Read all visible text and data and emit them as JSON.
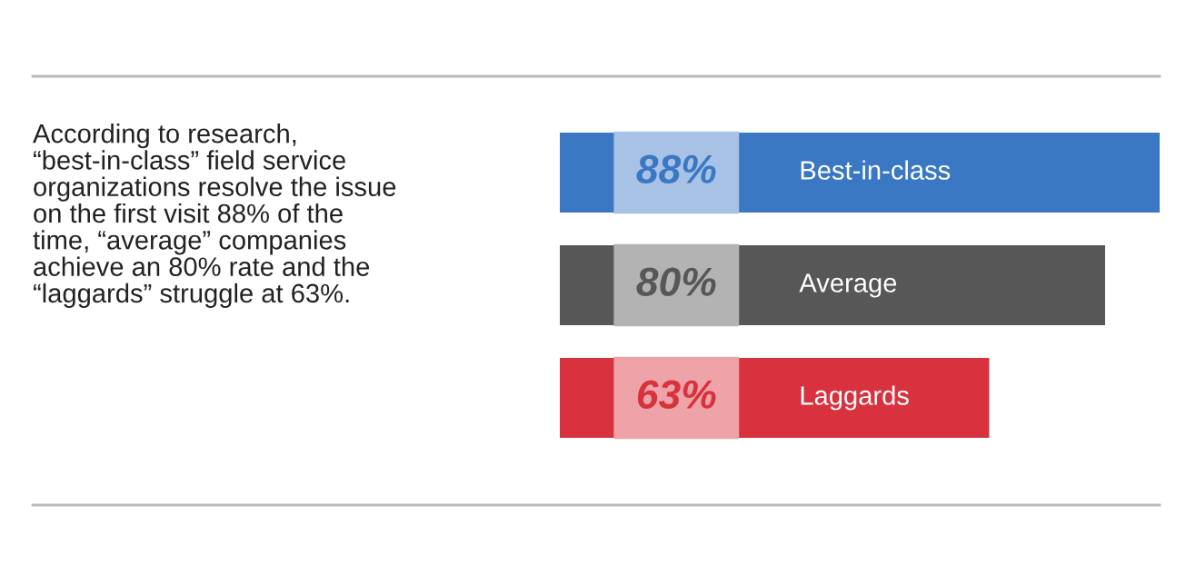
{
  "chart_data": {
    "type": "bar",
    "orientation": "horizontal",
    "categories": [
      "Best-in-class",
      "Average",
      "Laggards"
    ],
    "values": [
      88,
      80,
      63
    ],
    "colors": [
      "#3b78c4",
      "#575757",
      "#d8323e"
    ],
    "value_labels": [
      "88%",
      "80%",
      "63%"
    ],
    "annotations": [
      "According to research,\n“best-in-class” field service\norganizations resolve the issue\non the first visit 88% of the\ntime, “average” companies\nachieve an 80% rate and the\n“laggards” struggle at 63%."
    ]
  }
}
